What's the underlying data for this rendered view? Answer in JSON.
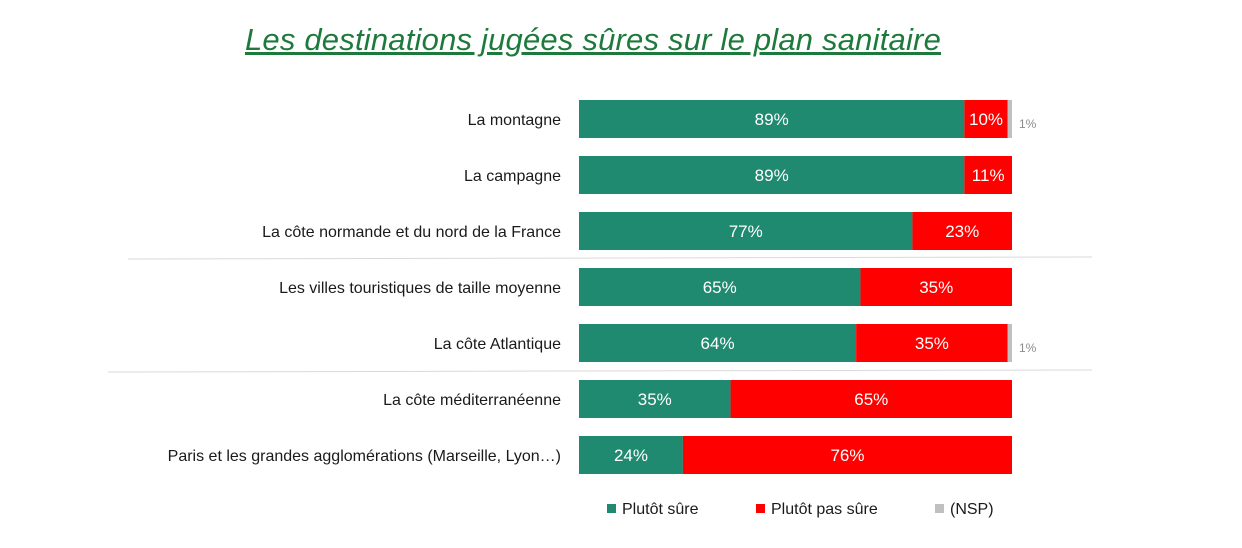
{
  "title": "Les destinations jugées sûres sur le plan sanitaire",
  "colors": {
    "sure": "#1f8a70",
    "pas_sure": "#ff0000",
    "nsp": "#c0c0c0",
    "title": "#1e7a3c"
  },
  "chart_data": {
    "type": "bar",
    "orientation": "horizontal",
    "stacked": true,
    "percent_scale": true,
    "title": "Les destinations jugées sûres sur le plan sanitaire",
    "categories": [
      "La montagne",
      "La campagne",
      "La côte normande et du nord de la France",
      "Les villes touristiques de taille moyenne",
      "La côte Atlantique",
      "La côte méditerranéenne",
      "Paris et les grandes agglomérations (Marseille, Lyon…)"
    ],
    "series": [
      {
        "name": "Plutôt sûre",
        "color": "#1f8a70",
        "values": [
          89,
          89,
          77,
          65,
          64,
          35,
          24
        ]
      },
      {
        "name": "Plutôt pas sûre",
        "color": "#ff0000",
        "values": [
          10,
          11,
          23,
          35,
          35,
          65,
          76
        ]
      },
      {
        "name": "(NSP)",
        "color": "#c0c0c0",
        "values": [
          1,
          0,
          0,
          0,
          1,
          0,
          0
        ]
      }
    ],
    "value_suffix": "%",
    "legend_position": "bottom",
    "grid": false
  }
}
